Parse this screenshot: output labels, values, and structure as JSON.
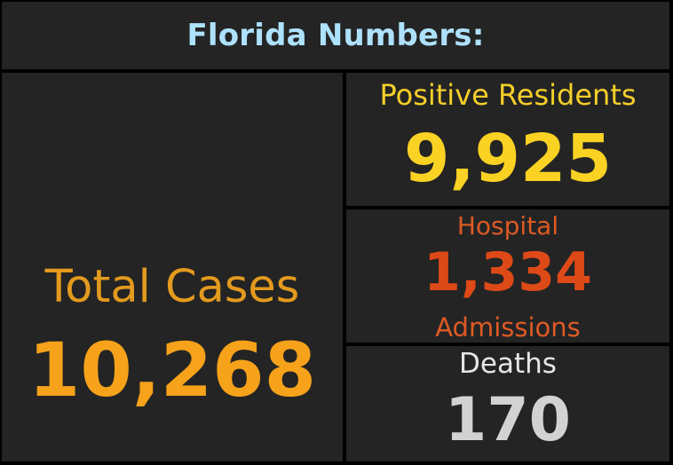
{
  "header": {
    "title": "Florida Numbers:"
  },
  "total_cases": {
    "label": "Total Cases",
    "value": "10,268",
    "label_color": "#e39a1e",
    "value_color": "#f6a21a"
  },
  "positive_residents": {
    "label": "Positive Residents",
    "value": "9,925",
    "color": "#fad223"
  },
  "hospital": {
    "label": "Hospital",
    "value": "1,334",
    "sublabel": "Admissions",
    "color": "#de4a17"
  },
  "deaths": {
    "label": "Deaths",
    "value": "170",
    "color": "#d2d2d2"
  },
  "colors": {
    "background": "#000000",
    "panel": "#242424",
    "header_text": "#aee1fb"
  }
}
